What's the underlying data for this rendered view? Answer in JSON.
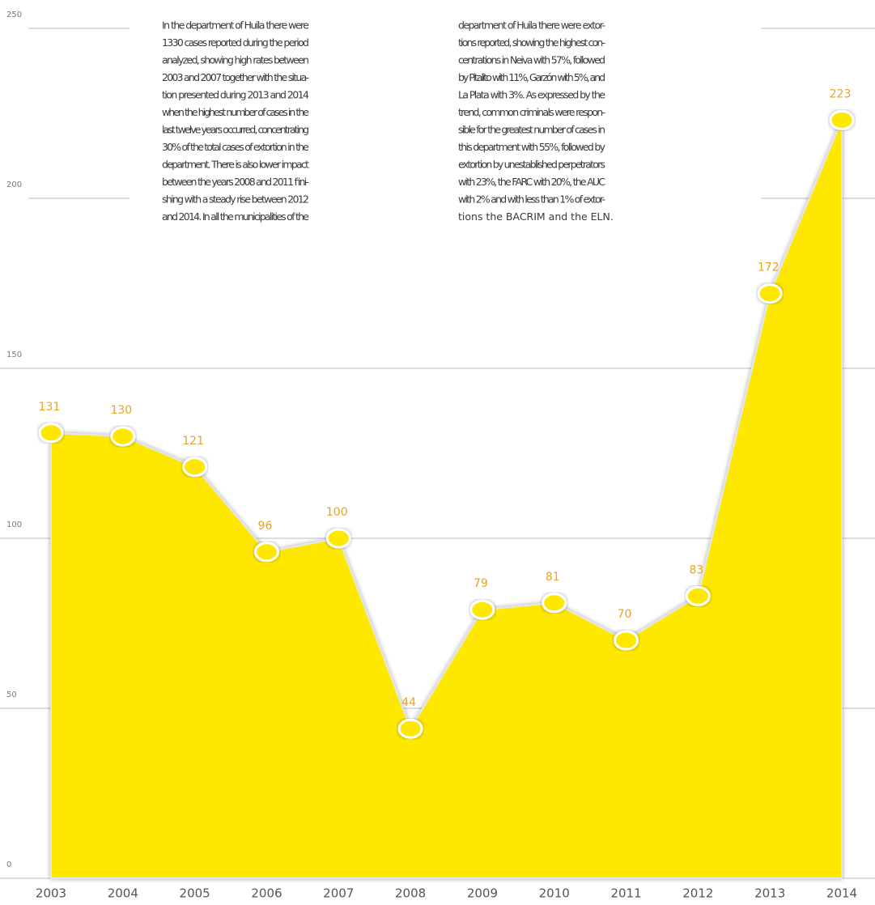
{
  "chart_data": {
    "type": "area",
    "categories": [
      "2003",
      "2004",
      "2005",
      "2006",
      "2007",
      "2008",
      "2009",
      "2010",
      "2011",
      "2012",
      "2013",
      "2014"
    ],
    "values": [
      131,
      130,
      121,
      96,
      100,
      44,
      79,
      81,
      70,
      83,
      172,
      223
    ],
    "color": "#ffe800",
    "label_color": "#e8a321",
    "ylim": [
      0,
      250
    ],
    "yticks": [
      0,
      50,
      100,
      150,
      200,
      250
    ],
    "grid": true,
    "text_columns": [
      [
        "In the department of Huila there were",
        "1330 cases reported during the period",
        "analyzed, showing high rates between",
        "2003 and 2007 together with the situa-",
        "tion presented during 2013 and 2014",
        "when the highest number of cases in the",
        "last twelve years occurred, concentrating",
        "30% of the total cases of extortion in the",
        "department.  There is also lower impact",
        "between the years 2008 and 2011 fini-",
        "shing with a steady rise between 2012",
        "and 2014. In all the municipalities of the"
      ],
      [
        "department of Huila there were extor-",
        "tions reported, showing the highest con-",
        "centrations in Neiva with 57%, followed",
        "by Pitalito with 11%, Garzón with 5%, and",
        "La Plata with 3%. As expressed by the",
        "trend, common criminals were respon-",
        "sible for the greatest number of cases in",
        "this department with 55%, followed by",
        "extortion by unestablished perpetrators",
        "with 23%, the FARC with 20%, the AUC",
        "with 2% and with less than 1% of extor-",
        "tions the BACRIM and the ELN."
      ]
    ]
  }
}
